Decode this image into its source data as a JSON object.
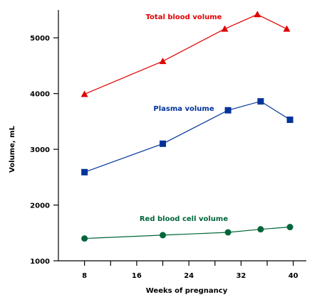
{
  "chart_data": {
    "type": "line",
    "title": "",
    "xlabel": "Weeks of pregnancy",
    "ylabel": "Volume, mL",
    "xlim": [
      4,
      42
    ],
    "ylim": [
      1000,
      5500
    ],
    "x_ticks_major": [
      8,
      16,
      24,
      32,
      40
    ],
    "x_ticks_minor": [
      12,
      20,
      28,
      36
    ],
    "y_ticks": [
      1000,
      2000,
      3000,
      4000,
      5000
    ],
    "grid": false,
    "series": [
      {
        "name": "Total blood volume",
        "color": "#e00000",
        "marker": "triangle",
        "points": [
          {
            "x": 8,
            "y": 3990
          },
          {
            "x": 20,
            "y": 4580
          },
          {
            "x": 29.5,
            "y": 5160
          },
          {
            "x": 34.5,
            "y": 5420
          },
          {
            "x": 39,
            "y": 5160
          }
        ]
      },
      {
        "name": "Plasma volume",
        "color": "#003399",
        "marker": "square",
        "points": [
          {
            "x": 8,
            "y": 2590
          },
          {
            "x": 20,
            "y": 3100
          },
          {
            "x": 30,
            "y": 3700
          },
          {
            "x": 35,
            "y": 3860
          },
          {
            "x": 39.5,
            "y": 3530
          }
        ]
      },
      {
        "name": "Red blood cell volume",
        "color": "#00663a",
        "marker": "circle",
        "points": [
          {
            "x": 8,
            "y": 1400
          },
          {
            "x": 20,
            "y": 1460
          },
          {
            "x": 30,
            "y": 1510
          },
          {
            "x": 35,
            "y": 1565
          },
          {
            "x": 39.5,
            "y": 1605
          }
        ]
      }
    ]
  }
}
